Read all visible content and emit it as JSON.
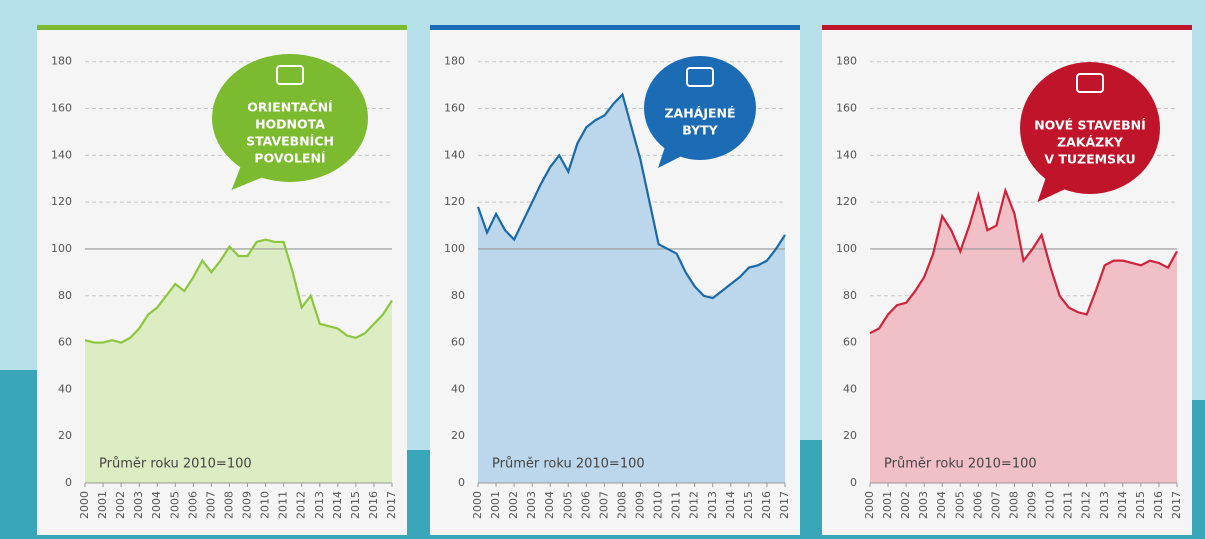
{
  "chart_data": [
    {
      "type": "area",
      "badge": [
        "ORIENTAČNÍ",
        "HODNOTA",
        "STAVEBNÍCH",
        "POVOLENÍ"
      ],
      "note": "Průměr roku 2010=100",
      "color": "#7cba2f",
      "line_color": "#8cc63f",
      "area_color": "#dcecc3",
      "reference_line": 100,
      "x": [
        2000,
        2000.5,
        2001,
        2001.5,
        2002,
        2002.5,
        2003,
        2003.5,
        2004,
        2004.5,
        2005,
        2005.5,
        2006,
        2006.5,
        2007,
        2007.5,
        2008,
        2008.5,
        2009,
        2009.5,
        2010,
        2010.5,
        2011,
        2011.5,
        2012,
        2012.5,
        2013,
        2013.5,
        2014,
        2014.5,
        2015,
        2015.5,
        2016,
        2016.5,
        2017
      ],
      "values": [
        61,
        60,
        60,
        61,
        60,
        62,
        66,
        72,
        75,
        80,
        85,
        82,
        88,
        95,
        90,
        95,
        101,
        97,
        97,
        103,
        104,
        103,
        103,
        90,
        75,
        80,
        68,
        67,
        66,
        63,
        62,
        64,
        68,
        72,
        78
      ],
      "xlim": [
        2000,
        2017
      ],
      "xticks": [
        2000,
        2001,
        2002,
        2003,
        2004,
        2005,
        2006,
        2007,
        2008,
        2009,
        2010,
        2011,
        2012,
        2013,
        2014,
        2015,
        2016,
        2017
      ],
      "ylim": [
        0,
        185
      ],
      "yticks": [
        0,
        20,
        40,
        60,
        80,
        100,
        120,
        140,
        160,
        180
      ],
      "grid": true
    },
    {
      "type": "area",
      "badge": [
        "ZAHÁJENÉ",
        "BYTY"
      ],
      "note": "Průměr roku 2010=100",
      "color": "#1c6bb5",
      "line_color": "#1a6aaa",
      "area_color": "#bcd7ec",
      "reference_line": 100,
      "x": [
        2000,
        2000.5,
        2001,
        2001.5,
        2002,
        2002.5,
        2003,
        2003.5,
        2004,
        2004.5,
        2005,
        2005.5,
        2006,
        2006.5,
        2007,
        2007.5,
        2008,
        2008.5,
        2009,
        2009.5,
        2010,
        2010.5,
        2011,
        2011.5,
        2012,
        2012.5,
        2013,
        2013.5,
        2014,
        2014.5,
        2015,
        2015.5,
        2016,
        2016.5,
        2017
      ],
      "values": [
        118,
        107,
        115,
        108,
        104,
        112,
        120,
        128,
        135,
        140,
        133,
        145,
        152,
        155,
        157,
        162,
        166,
        152,
        138,
        120,
        102,
        100,
        98,
        90,
        84,
        80,
        79,
        82,
        85,
        88,
        92,
        93,
        95,
        100,
        106
      ],
      "xlim": [
        2000,
        2017
      ],
      "xticks": [
        2000,
        2001,
        2002,
        2003,
        2004,
        2005,
        2006,
        2007,
        2008,
        2009,
        2010,
        2011,
        2012,
        2013,
        2014,
        2015,
        2016,
        2017
      ],
      "ylim": [
        0,
        185
      ],
      "yticks": [
        0,
        20,
        40,
        60,
        80,
        100,
        120,
        140,
        160,
        180
      ],
      "grid": true
    },
    {
      "type": "area",
      "badge": [
        "NOVÉ STAVEBNÍ",
        "ZAKÁZKY",
        "V TUZEMSKU"
      ],
      "note": "Průměr roku 2010=100",
      "color": "#c0142a",
      "line_color": "#d0233a",
      "area_color": "#f0c0c6",
      "reference_line": 100,
      "x": [
        2000,
        2000.5,
        2001,
        2001.5,
        2002,
        2002.5,
        2003,
        2003.5,
        2004,
        2004.5,
        2005,
        2005.5,
        2006,
        2006.5,
        2007,
        2007.5,
        2008,
        2008.5,
        2009,
        2009.5,
        2010,
        2010.5,
        2011,
        2011.5,
        2012,
        2012.5,
        2013,
        2013.5,
        2014,
        2014.5,
        2015,
        2015.5,
        2016,
        2016.5,
        2017
      ],
      "values": [
        64,
        66,
        72,
        76,
        77,
        82,
        88,
        98,
        114,
        108,
        99,
        110,
        123,
        108,
        110,
        125,
        115,
        95,
        100,
        106,
        92,
        80,
        75,
        73,
        72,
        82,
        93,
        95,
        95,
        94,
        93,
        95,
        94,
        92,
        99
      ],
      "xlim": [
        2000,
        2017
      ],
      "xticks": [
        2000,
        2001,
        2002,
        2003,
        2004,
        2005,
        2006,
        2007,
        2008,
        2009,
        2010,
        2011,
        2012,
        2013,
        2014,
        2015,
        2016,
        2017
      ],
      "ylim": [
        0,
        185
      ],
      "yticks": [
        0,
        20,
        40,
        60,
        80,
        100,
        120,
        140,
        160,
        180
      ],
      "grid": true
    }
  ]
}
